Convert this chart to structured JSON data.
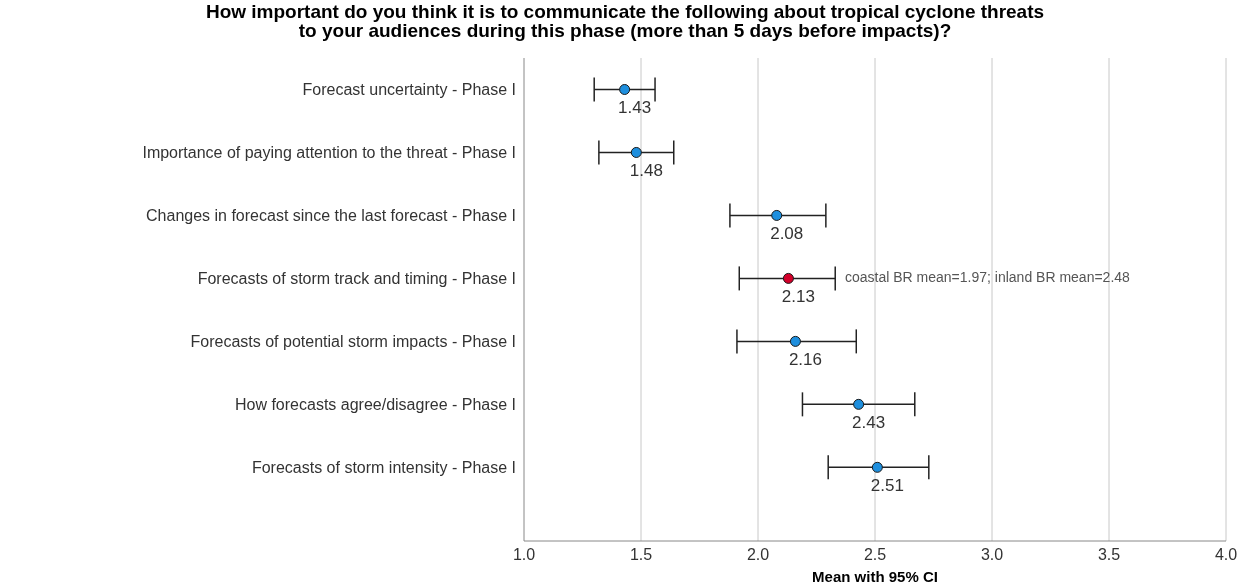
{
  "chart_data": {
    "type": "scatter",
    "orientation": "horizontal",
    "title": "How important do you think it is to communicate the following about tropical cyclone threats\nto your audiences during this phase (more than 5 days before impacts)?",
    "xlabel": "Mean with 95% CI",
    "categories": [
      "Forecast uncertainty - Phase I",
      "Importance of paying attention to the threat - Phase I",
      "Changes in forecast since the last forecast - Phase I",
      "Forecasts of storm track and timing - Phase I",
      "Forecasts of potential storm impacts - Phase I",
      "How forecasts agree/disagree - Phase I",
      "Forecasts of storm intensity - Phase I"
    ],
    "values": [
      1.43,
      1.48,
      2.08,
      2.13,
      2.16,
      2.43,
      2.51
    ],
    "errors": [
      [
        1.3,
        1.56
      ],
      [
        1.32,
        1.64
      ],
      [
        1.88,
        2.29
      ],
      [
        1.92,
        2.33
      ],
      [
        1.91,
        2.42
      ],
      [
        2.19,
        2.67
      ],
      [
        2.3,
        2.73
      ]
    ],
    "colors": [
      "#1e8fde",
      "#1e8fde",
      "#1e8fde",
      "#d3002a",
      "#1e8fde",
      "#1e8fde",
      "#1e8fde"
    ],
    "annotations": [
      "coastal BR mean=1.97; inland BR mean=2.48"
    ],
    "xlim": [
      1.0,
      4.0
    ],
    "xticks": [
      {
        "value": 1.0,
        "label": "1.0"
      },
      {
        "value": 1.5,
        "label": "1.5"
      },
      {
        "value": 2.0,
        "label": "2.0"
      },
      {
        "value": 2.5,
        "label": "2.5"
      },
      {
        "value": 3.0,
        "label": "3.0"
      },
      {
        "value": 3.5,
        "label": "3.5"
      },
      {
        "value": 4.0,
        "label": "4.0"
      }
    ],
    "grid": "x",
    "marker": "circle",
    "data_labels": true
  }
}
